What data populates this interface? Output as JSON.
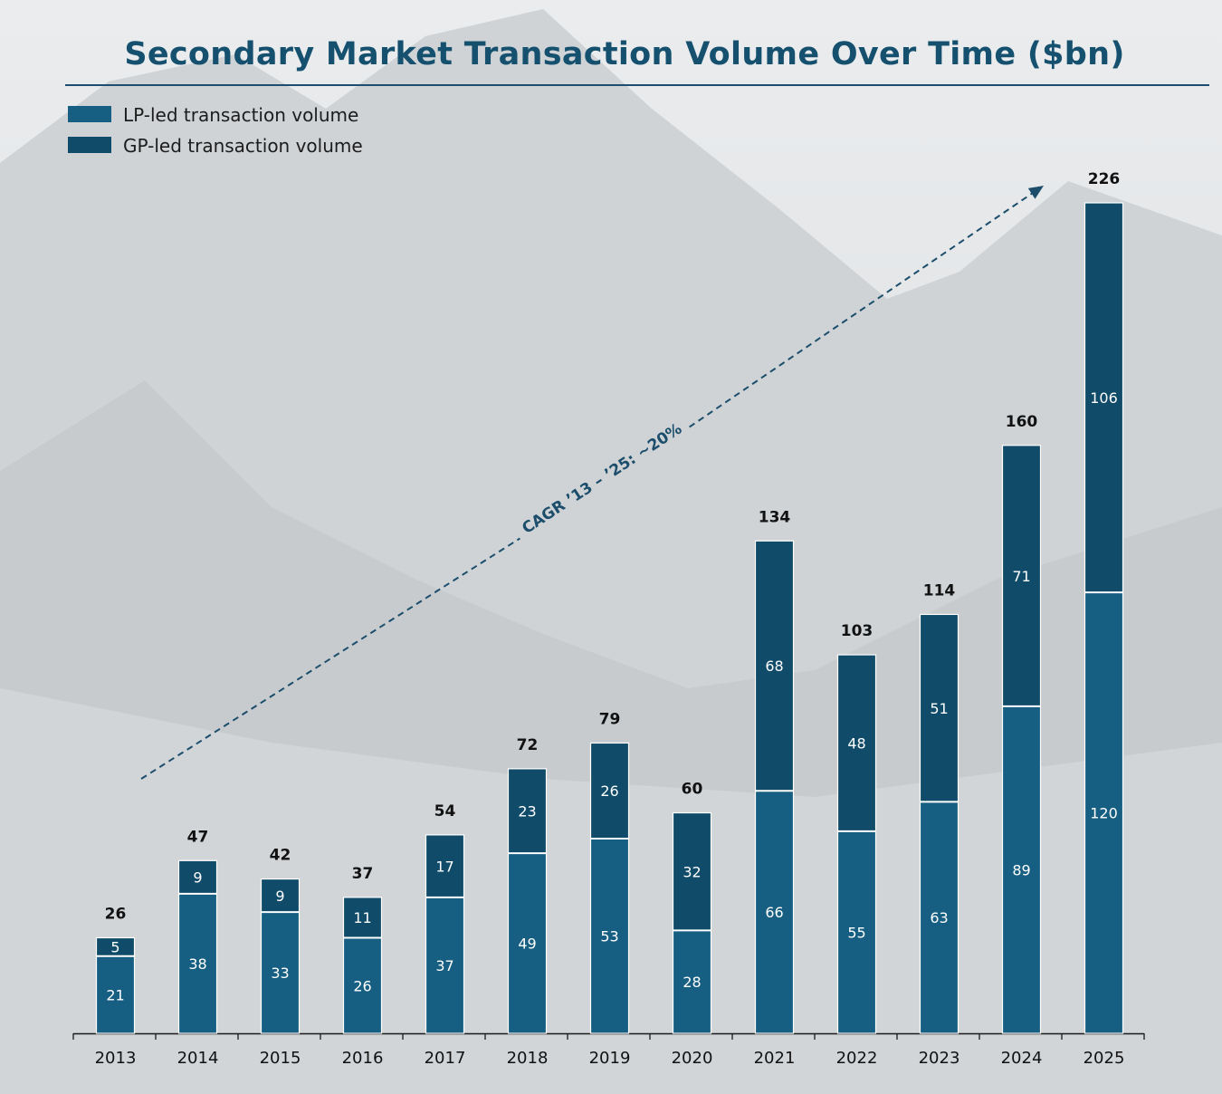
{
  "chart_data": {
    "type": "bar",
    "stacked": true,
    "title": "Secondary Market Transaction Volume Over Time ($bn)",
    "categories": [
      "2013",
      "2014",
      "2015",
      "2016",
      "2017",
      "2018",
      "2019",
      "2020",
      "2021",
      "2022",
      "2023",
      "2024",
      "2025"
    ],
    "series": [
      {
        "name": "LP-led transaction volume",
        "color": "#165e82",
        "values": [
          21,
          38,
          33,
          26,
          37,
          49,
          53,
          28,
          66,
          55,
          63,
          89,
          120
        ]
      },
      {
        "name": "GP-led transaction volume",
        "color": "#104b69",
        "values": [
          5,
          9,
          9,
          11,
          17,
          23,
          26,
          32,
          68,
          48,
          51,
          71,
          106
        ]
      }
    ],
    "totals": [
      26,
      47,
      42,
      37,
      54,
      72,
      79,
      60,
      134,
      103,
      114,
      160,
      226
    ],
    "xlabel": "",
    "ylabel": "",
    "ylim": [
      0,
      226
    ],
    "legend_position": "top-left",
    "annotation": {
      "text": "CAGR ’13 – ’25: ~20%",
      "from_category": "2013",
      "to_category": "2025"
    }
  }
}
